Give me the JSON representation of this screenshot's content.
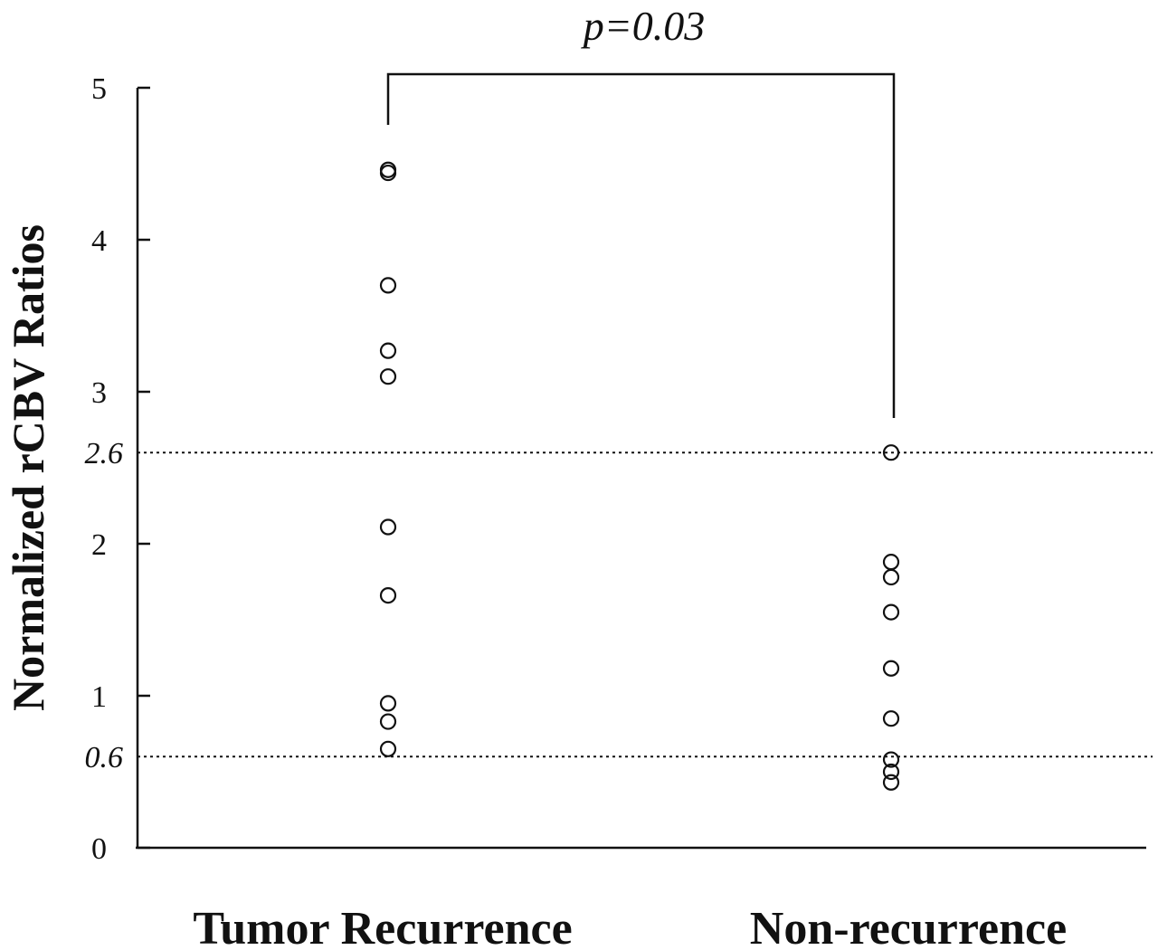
{
  "chart_data": {
    "type": "scatter",
    "title": "",
    "xlabel": "",
    "ylabel": "Normalized rCBV Ratios",
    "ylim": [
      0,
      5
    ],
    "yticks": [
      "0",
      "1",
      "2",
      "3",
      "4",
      "5"
    ],
    "reference_lines": [
      {
        "value": 2.6,
        "label": "2.6",
        "style": "dotted"
      },
      {
        "value": 0.6,
        "label": "0.6",
        "style": "dotted"
      }
    ],
    "categories": [
      "Tumor Recurrence",
      "Non-recurrence"
    ],
    "series": [
      {
        "category": "Tumor Recurrence",
        "values": [
          4.46,
          4.44,
          3.7,
          3.27,
          3.1,
          2.11,
          1.66,
          0.95,
          0.83,
          0.65
        ]
      },
      {
        "category": "Non-recurrence",
        "values": [
          2.6,
          1.88,
          1.78,
          1.55,
          1.18,
          0.85,
          0.58,
          0.5,
          0.43
        ]
      }
    ],
    "annotation": {
      "text": "p=0.03",
      "between": [
        "Tumor Recurrence",
        "Non-recurrence"
      ]
    },
    "grid": false,
    "marker": "open-circle",
    "colors": {
      "ink": "#111111",
      "background": "#ffffff"
    }
  }
}
